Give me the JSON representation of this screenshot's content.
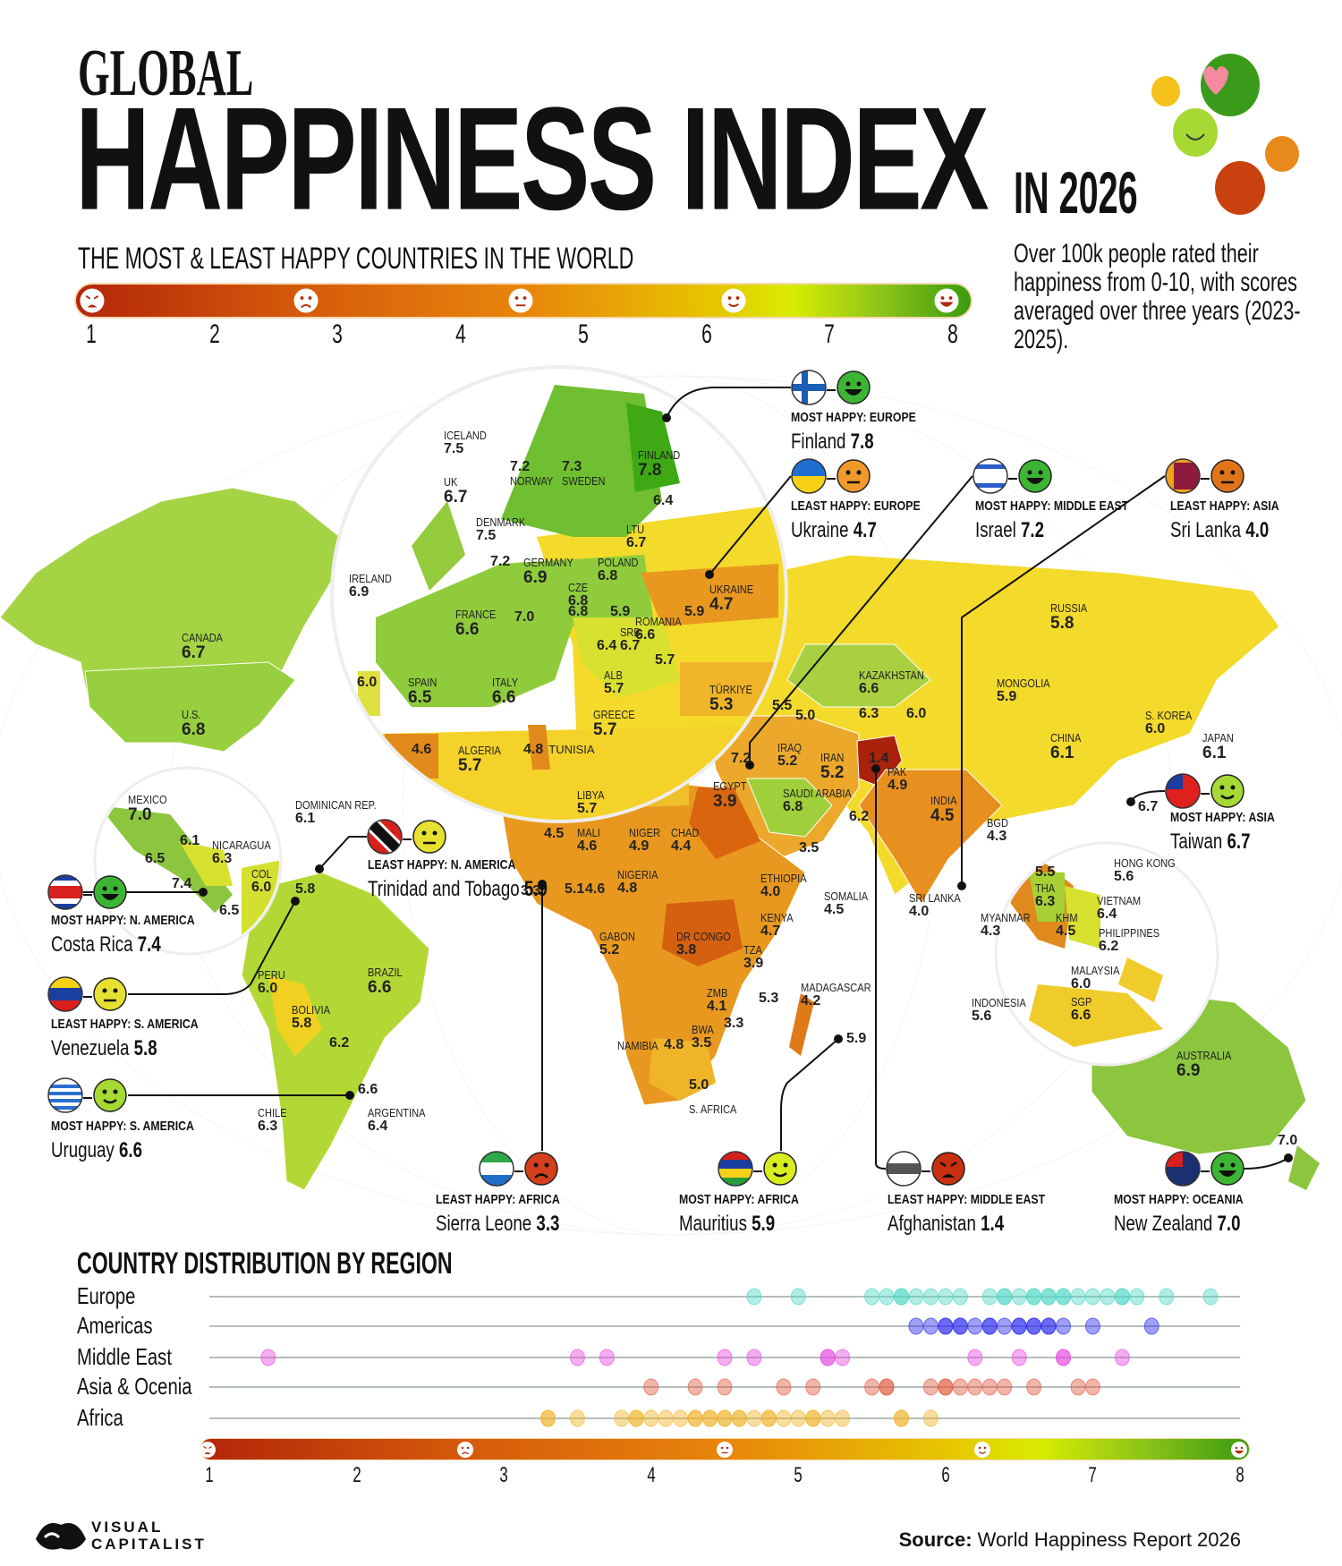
{
  "header": {
    "title_line1": "GLOBAL",
    "title_line2": "HAPPINESS INDEX",
    "year_label": "IN 2026",
    "subtitle": "THE MOST & LEAST HAPPY COUNTRIES IN THE WORLD",
    "description": "Over 100k people rated their happiness from 0-10, with scores averaged over three years (2023-2025)."
  },
  "scale": {
    "ticks": [
      "1",
      "2",
      "3",
      "4",
      "5",
      "6",
      "7",
      "8"
    ],
    "faces": [
      "angry",
      "frown",
      "neutral",
      "smile",
      "grin"
    ],
    "colors": {
      "low": "#b3260a",
      "mid": "#e8850b",
      "high_mid": "#d8ec00",
      "high": "#3a9b0f"
    }
  },
  "map_labels": [
    {
      "name": "ICELAND",
      "score": "7.5"
    },
    {
      "name": "UK",
      "score": "6.7"
    },
    {
      "name": "DENMARK",
      "score": "7.5"
    },
    {
      "name": "IRELAND",
      "score": "6.9"
    },
    {
      "name": "NORWAY",
      "score": "7.2"
    },
    {
      "name": "SWEDEN",
      "score": "7.3"
    },
    {
      "name": "FINLAND",
      "score": "7.8"
    },
    {
      "name": "",
      "score": "6.4"
    },
    {
      "name": "LTU",
      "score": "6.7"
    },
    {
      "name": "",
      "score": "7.2"
    },
    {
      "name": "GERMANY",
      "score": "6.9"
    },
    {
      "name": "POLAND",
      "score": "6.8"
    },
    {
      "name": "CZE",
      "score": "6.8"
    },
    {
      "name": "UKRAINE",
      "score": "4.7"
    },
    {
      "name": "FRANCE",
      "score": "6.6"
    },
    {
      "name": "",
      "score": "7.0"
    },
    {
      "name": "",
      "score": "6.8"
    },
    {
      "name": "",
      "score": "5.9"
    },
    {
      "name": "",
      "score": "5.9"
    },
    {
      "name": "ROMANIA",
      "score": "6.6"
    },
    {
      "name": "SRB",
      "score": "6.7"
    },
    {
      "name": "",
      "score": "6.4"
    },
    {
      "name": "",
      "score": "5.7"
    },
    {
      "name": "ALB",
      "score": "5.7"
    },
    {
      "name": "TÜRKIYE",
      "score": "5.3"
    },
    {
      "name": "",
      "score": "6.0"
    },
    {
      "name": "SPAIN",
      "score": "6.5"
    },
    {
      "name": "ITALY",
      "score": "6.6"
    },
    {
      "name": "GREECE",
      "score": "5.7"
    },
    {
      "name": "",
      "score": "4.6"
    },
    {
      "name": "ALGERIA",
      "score": "5.7"
    },
    {
      "name": "TUNISIA",
      "score": "4.8"
    },
    {
      "name": "CANADA",
      "score": "6.7"
    },
    {
      "name": "U.S.",
      "score": "6.8"
    },
    {
      "name": "MEXICO",
      "score": "7.0"
    },
    {
      "name": "",
      "score": "6.1"
    },
    {
      "name": "NICARAGUA",
      "score": "6.3"
    },
    {
      "name": "",
      "score": "6.5"
    },
    {
      "name": "",
      "score": "7.4"
    },
    {
      "name": "",
      "score": "6.5"
    },
    {
      "name": "COL",
      "score": "6.0"
    },
    {
      "name": "DOMINICAN REP.",
      "score": "6.1"
    },
    {
      "name": "",
      "score": "5.8"
    },
    {
      "name": "",
      "score": "3.3"
    },
    {
      "name": "PERU",
      "score": "6.0"
    },
    {
      "name": "BRAZIL",
      "score": "6.6"
    },
    {
      "name": "BOLIVIA",
      "score": "5.8"
    },
    {
      "name": "",
      "score": "6.2"
    },
    {
      "name": "",
      "score": "6.6"
    },
    {
      "name": "CHILE",
      "score": "6.3"
    },
    {
      "name": "ARGENTINA",
      "score": "6.4"
    },
    {
      "name": "LIBYA",
      "score": "5.7"
    },
    {
      "name": "EGYPT",
      "score": "3.9"
    },
    {
      "name": "",
      "score": "7.2"
    },
    {
      "name": "",
      "score": "5.5"
    },
    {
      "name": "",
      "score": "5.0"
    },
    {
      "name": "IRAQ",
      "score": "5.2"
    },
    {
      "name": "IRAN",
      "score": "5.2"
    },
    {
      "name": "",
      "score": "1.4"
    },
    {
      "name": "PAK",
      "score": "4.9"
    },
    {
      "name": "SAUDI ARABIA",
      "score": "6.8"
    },
    {
      "name": "",
      "score": "6.2"
    },
    {
      "name": "",
      "score": "3.5"
    },
    {
      "name": "KAZAKHSTAN",
      "score": "6.6"
    },
    {
      "name": "",
      "score": "6.3"
    },
    {
      "name": "",
      "score": "6.0"
    },
    {
      "name": "RUSSIA",
      "score": "5.8"
    },
    {
      "name": "MONGOLIA",
      "score": "5.9"
    },
    {
      "name": "CHINA",
      "score": "6.1"
    },
    {
      "name": "S. KOREA",
      "score": "6.0"
    },
    {
      "name": "JAPAN",
      "score": "6.1"
    },
    {
      "name": "",
      "score": "6.7"
    },
    {
      "name": "INDIA",
      "score": "4.5"
    },
    {
      "name": "BGD",
      "score": "4.3"
    },
    {
      "name": "SRI LANKA",
      "score": "4.0"
    },
    {
      "name": "",
      "score": "4.5"
    },
    {
      "name": "MALI",
      "score": "4.6"
    },
    {
      "name": "NIGER",
      "score": "4.9"
    },
    {
      "name": "CHAD",
      "score": "4.4"
    },
    {
      "name": "NIGERIA",
      "score": "4.8"
    },
    {
      "name": "",
      "score": "5.1"
    },
    {
      "name": "",
      "score": "4.6"
    },
    {
      "name": "GABON",
      "score": "5.2"
    },
    {
      "name": "DR CONGO",
      "score": "3.8"
    },
    {
      "name": "ETHIOPIA",
      "score": "4.0"
    },
    {
      "name": "KENYA",
      "score": "4.7"
    },
    {
      "name": "TZA",
      "score": "3.9"
    },
    {
      "name": "SOMALIA",
      "score": "4.5"
    },
    {
      "name": "ZMB",
      "score": "4.1"
    },
    {
      "name": "",
      "score": "5.3"
    },
    {
      "name": "",
      "score": "3.3"
    },
    {
      "name": "BWA",
      "score": "3.5"
    },
    {
      "name": "NAMIBIA",
      "score": ""
    },
    {
      "name": "",
      "score": "4.8"
    },
    {
      "name": "",
      "score": "5.0"
    },
    {
      "name": "S. AFRICA",
      "score": ""
    },
    {
      "name": "MADAGASCAR",
      "score": "4.2"
    },
    {
      "name": "",
      "score": "5.9"
    },
    {
      "name": "",
      "score": "5.5"
    },
    {
      "name": "THA",
      "score": "6.3"
    },
    {
      "name": "MYANMAR",
      "score": "4.3"
    },
    {
      "name": "KHM",
      "score": "4.5"
    },
    {
      "name": "HONG KONG",
      "score": "5.6"
    },
    {
      "name": "VIETNAM",
      "score": "6.4"
    },
    {
      "name": "PHILIPPINES",
      "score": "6.2"
    },
    {
      "name": "MALAYSIA",
      "score": "6.0"
    },
    {
      "name": "SGP",
      "score": "6.6"
    },
    {
      "name": "INDONESIA",
      "score": "5.6"
    },
    {
      "name": "AUSTRALIA",
      "score": "6.9"
    },
    {
      "name": "",
      "score": "7.0"
    }
  ],
  "callouts": [
    {
      "label": "MOST HAPPY: EUROPE",
      "country": "Finland",
      "score": "7.8",
      "flag": "finland",
      "face": "grin"
    },
    {
      "label": "LEAST HAPPY: EUROPE",
      "country": "Ukraine",
      "score": "4.7",
      "flag": "ukraine",
      "face": "neutral"
    },
    {
      "label": "MOST HAPPY: MIDDLE EAST",
      "country": "Israel",
      "score": "7.2",
      "flag": "israel",
      "face": "grin"
    },
    {
      "label": "LEAST HAPPY: ASIA",
      "country": "Sri Lanka",
      "score": "4.0",
      "flag": "sri-lanka",
      "face": "neutral-dark"
    },
    {
      "label": "MOST HAPPY: ASIA",
      "country": "Taiwan",
      "score": "6.7",
      "flag": "taiwan",
      "face": "smile"
    },
    {
      "label": "LEAST HAPPY: N. AMERICA",
      "country": "Trinidad and Tobago",
      "score": "5.9",
      "flag": "trinidad",
      "face": "neutral-lime"
    },
    {
      "label": "MOST HAPPY: N. AMERICA",
      "country": "Costa Rica",
      "score": "7.4",
      "flag": "costa-rica",
      "face": "grin"
    },
    {
      "label": "LEAST HAPPY: S. AMERICA",
      "country": "Venezuela",
      "score": "5.8",
      "flag": "venezuela",
      "face": "neutral-lime"
    },
    {
      "label": "MOST HAPPY: S. AMERICA",
      "country": "Uruguay",
      "score": "6.6",
      "flag": "uruguay",
      "face": "smile"
    },
    {
      "label": "LEAST HAPPY: AFRICA",
      "country": "Sierra Leone",
      "score": "3.3",
      "flag": "sierra-leone",
      "face": "frown"
    },
    {
      "label": "MOST HAPPY: AFRICA",
      "country": "Mauritius",
      "score": "5.9",
      "flag": "mauritius",
      "face": "smile-lime"
    },
    {
      "label": "LEAST HAPPY: MIDDLE EAST",
      "country": "Afghanistan",
      "score": "1.4",
      "flag": "afghanistan",
      "face": "angry"
    },
    {
      "label": "MOST HAPPY: OCEANIA",
      "country": "New Zealand",
      "score": "7.0",
      "flag": "new-zealand",
      "face": "grin"
    }
  ],
  "distribution": {
    "title": "COUNTRY DISTRIBUTION BY REGION"
  },
  "chart_data": {
    "type": "scatter",
    "title": "COUNTRY DISTRIBUTION BY REGION",
    "xlim": [
      1,
      8
    ],
    "x_ticks": [
      "1",
      "2",
      "3",
      "4",
      "5",
      "6",
      "7",
      "8"
    ],
    "series": [
      {
        "name": "Europe",
        "color": "#4fd6c6",
        "values": [
          4.7,
          5.0,
          5.5,
          5.6,
          5.7,
          5.7,
          5.8,
          5.9,
          6.0,
          6.1,
          6.3,
          6.4,
          6.4,
          6.5,
          6.6,
          6.6,
          6.7,
          6.7,
          6.8,
          6.8,
          6.9,
          7.0,
          7.1,
          7.2,
          7.2,
          7.3,
          7.5,
          7.8
        ]
      },
      {
        "name": "Americas",
        "color": "#2a2af0",
        "values": [
          5.8,
          5.9,
          6.0,
          6.0,
          6.1,
          6.1,
          6.2,
          6.3,
          6.3,
          6.4,
          6.5,
          6.5,
          6.6,
          6.6,
          6.7,
          6.7,
          6.8,
          7.0,
          7.4
        ]
      },
      {
        "name": "Middle East",
        "color": "#e649e0",
        "values": [
          1.4,
          3.5,
          3.7,
          4.5,
          4.7,
          5.2,
          5.2,
          5.3,
          6.2,
          6.5,
          6.8,
          6.8,
          7.2
        ]
      },
      {
        "name": "Asia & Ocenia",
        "color": "#e05a40",
        "values": [
          4.0,
          4.3,
          4.5,
          4.9,
          5.1,
          5.5,
          5.6,
          5.6,
          5.9,
          6.0,
          6.0,
          6.1,
          6.2,
          6.3,
          6.4,
          6.6,
          6.9,
          7.0
        ]
      },
      {
        "name": "Africa",
        "color": "#f0b428",
        "values": [
          3.3,
          3.3,
          3.5,
          3.8,
          3.9,
          3.9,
          4.0,
          4.1,
          4.2,
          4.3,
          4.3,
          4.4,
          4.4,
          4.5,
          4.5,
          4.6,
          4.6,
          4.7,
          4.8,
          4.8,
          4.9,
          5.0,
          5.1,
          5.1,
          5.2,
          5.3,
          5.7,
          5.7,
          5.9
        ]
      }
    ]
  },
  "footer": {
    "logo_line1": "VISUAL",
    "logo_line2": "CAPITALIST",
    "source_label": "Source:",
    "source_text": "World Happiness Report 2026"
  }
}
